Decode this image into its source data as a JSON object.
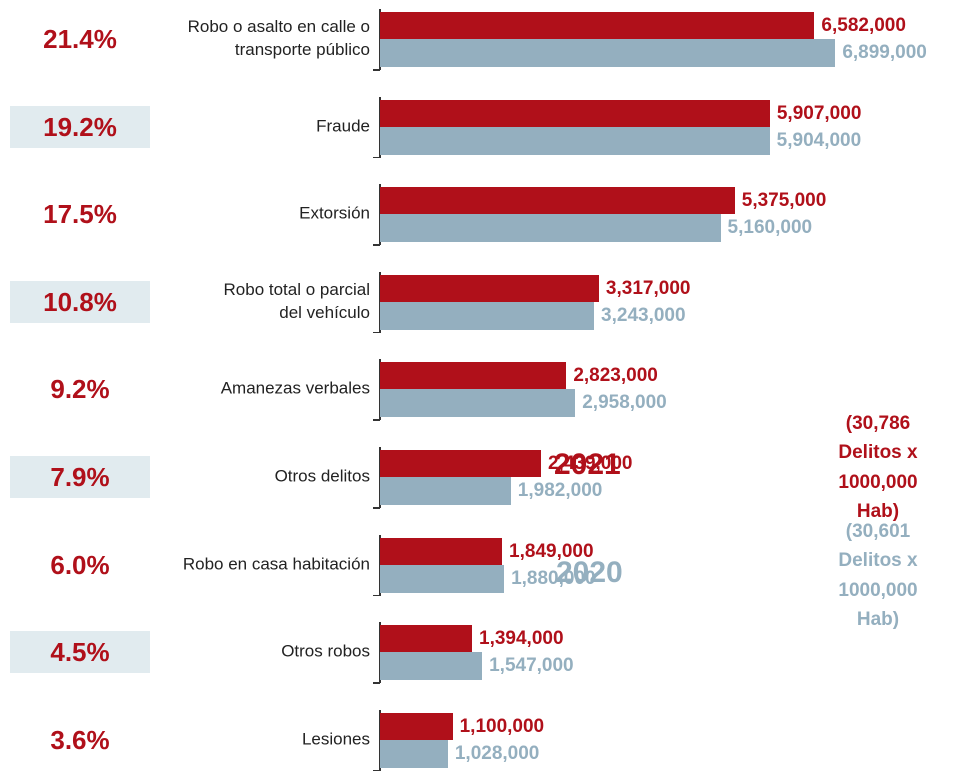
{
  "chart_data": {
    "type": "bar",
    "orientation": "horizontal",
    "categories": [
      "Robo o asalto en calle o\ntransporte público",
      "Fraude",
      "Extorsión",
      "Robo total o parcial\ndel vehículo",
      "Amanezas verbales",
      "Otros delitos",
      "Robo en casa habitación",
      "Otros robos",
      "Lesiones"
    ],
    "shares": [
      "21.4%",
      "19.2%",
      "17.5%",
      "10.8%",
      "9.2%",
      "7.9%",
      "6.0%",
      "4.5%",
      "3.6%"
    ],
    "series": [
      {
        "name": "2021",
        "description": "(30,786 Delitos x\n1000,000 Hab)",
        "color": "#b0101a",
        "values": [
          6582000,
          5907000,
          5375000,
          3317000,
          2823000,
          2439000,
          1849000,
          1394000,
          1100000
        ],
        "value_labels": [
          "6,582,000",
          "5,907,000",
          "5,375,000",
          "3,317,000",
          "2,823,000",
          "2,439,000",
          "1,849,000",
          "1,394,000",
          "1,100,000"
        ]
      },
      {
        "name": "2020",
        "description": "(30,601 Delitos x\n1000,000 Hab)",
        "color": "#94afbf",
        "values": [
          6899000,
          5904000,
          5160000,
          3243000,
          2958000,
          1982000,
          1880000,
          1547000,
          1028000
        ],
        "value_labels": [
          "6,899,000",
          "5,904,000",
          "5,160,000",
          "3,243,000",
          "2,958,000",
          "1,982,000",
          "1,880,000",
          "1,547,000",
          "1,028,000"
        ]
      }
    ],
    "xlim": [
      0,
      7000000
    ]
  }
}
